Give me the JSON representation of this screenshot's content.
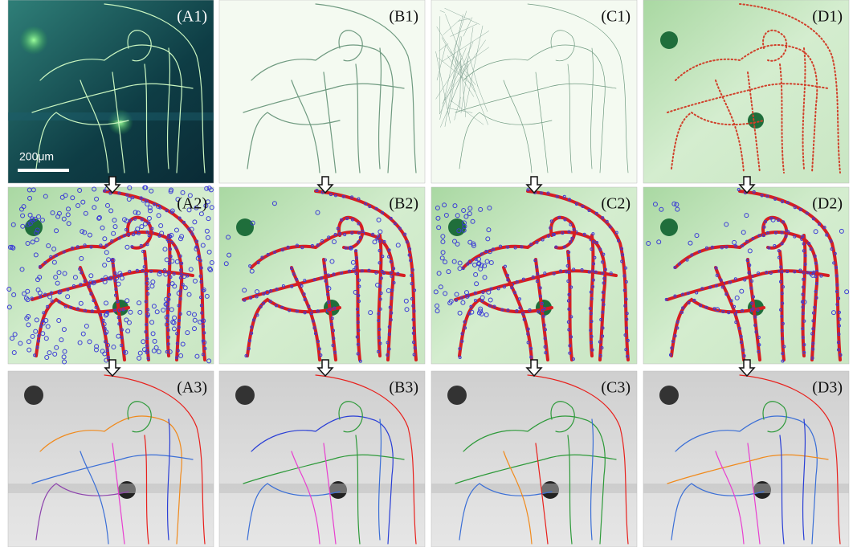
{
  "panels": [
    {
      "label": "(A1)"
    },
    {
      "label": "(B1)"
    },
    {
      "label": "(C1)"
    },
    {
      "label": "(D1)"
    },
    {
      "label": "(A2)"
    },
    {
      "label": "(B2)"
    },
    {
      "label": "(C2)"
    },
    {
      "label": "(D2)"
    },
    {
      "label": "(A3)"
    },
    {
      "label": "(B3)"
    },
    {
      "label": "(C3)"
    },
    {
      "label": "(D3)"
    }
  ],
  "scale_bar": "200μm"
}
